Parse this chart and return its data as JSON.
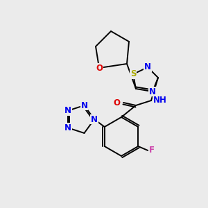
{
  "bg_color": "#ebebeb",
  "atom_colors": {
    "C": "#000000",
    "N": "#0000ee",
    "O": "#dd0000",
    "S": "#aaaa00",
    "F": "#cc44aa",
    "H": "#555555"
  },
  "bond_color": "#000000",
  "bond_lw": 1.4,
  "font_size_atom": 8.5,
  "fig_size": [
    3.0,
    3.0
  ],
  "dpi": 100
}
